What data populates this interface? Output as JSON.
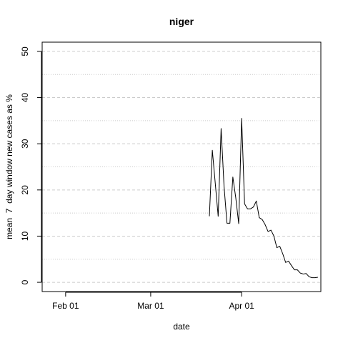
{
  "chart_data": {
    "type": "line",
    "title": "niger",
    "xlabel": "date",
    "ylabel": "mean  7  day window new cases as %",
    "xlim": [
      "2020-01-24",
      "2020-04-28"
    ],
    "ylim": [
      -2,
      52
    ],
    "x_ticks": [
      {
        "date": "2020-02-01",
        "label": "Feb 01"
      },
      {
        "date": "2020-03-01",
        "label": "Mar 01"
      },
      {
        "date": "2020-04-01",
        "label": "Apr 01"
      }
    ],
    "y_ticks": [
      0,
      10,
      20,
      30,
      40,
      50
    ],
    "y_minor_gridlines": [
      5,
      15,
      25,
      35,
      45
    ],
    "grid": true,
    "line_color": "#000000",
    "grid_color": "#cccccc",
    "series": [
      {
        "x": [
          "2020-03-21",
          "2020-03-22",
          "2020-03-23",
          "2020-03-24",
          "2020-03-25",
          "2020-03-26",
          "2020-03-27",
          "2020-03-28",
          "2020-03-29",
          "2020-03-30",
          "2020-03-31",
          "2020-04-01",
          "2020-04-02",
          "2020-04-03",
          "2020-04-04",
          "2020-04-05",
          "2020-04-06",
          "2020-04-07",
          "2020-04-08",
          "2020-04-09",
          "2020-04-10",
          "2020-04-11",
          "2020-04-12",
          "2020-04-13",
          "2020-04-14",
          "2020-04-15",
          "2020-04-16",
          "2020-04-17",
          "2020-04-18",
          "2020-04-19",
          "2020-04-20",
          "2020-04-21",
          "2020-04-22",
          "2020-04-23",
          "2020-04-24",
          "2020-04-25",
          "2020-04-26",
          "2020-04-27"
        ],
        "values": [
          14.3,
          28.6,
          21.5,
          14.3,
          33.3,
          20.8,
          12.8,
          12.8,
          22.8,
          18.3,
          12.7,
          35.5,
          17.0,
          15.9,
          15.9,
          16.3,
          17.6,
          14.0,
          13.6,
          12.5,
          11.0,
          11.3,
          10.0,
          7.5,
          7.8,
          6.2,
          4.3,
          4.6,
          3.6,
          2.7,
          2.7,
          2.0,
          1.8,
          1.9,
          1.2,
          1.0,
          1.0,
          1.1
        ]
      }
    ]
  }
}
